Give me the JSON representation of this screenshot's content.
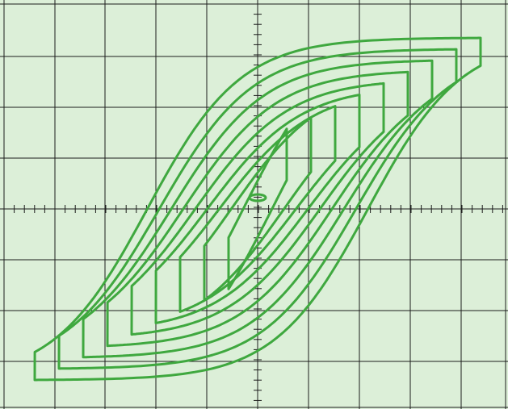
{
  "screen": {
    "background_color": "#dcefd8",
    "grid_color": "#1c1c1c",
    "trace_color": "#3fa83f",
    "grid_divisions": {
      "horizontal": 10,
      "vertical": 8
    },
    "minor_ticks_per_division": 5
  },
  "trace": {
    "description_free": true,
    "loop_count": 9,
    "loop_levels": [
      0.12,
      0.22,
      0.32,
      0.42,
      0.52,
      0.62,
      0.72,
      0.82,
      0.92
    ]
  }
}
